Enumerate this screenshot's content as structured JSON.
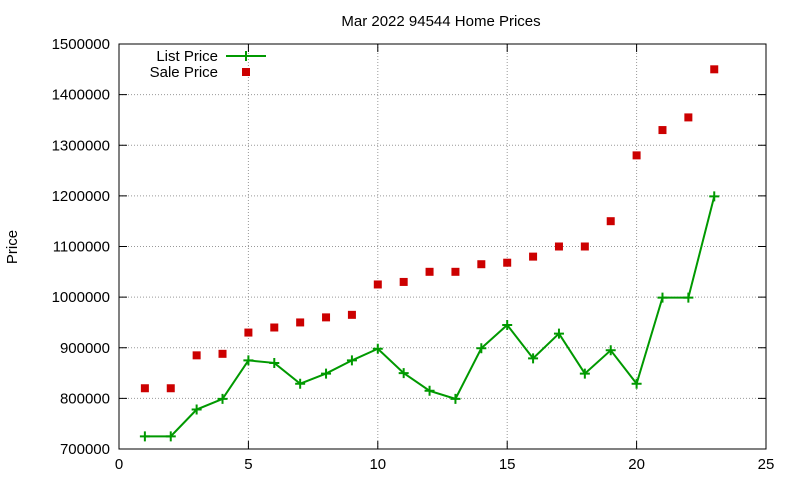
{
  "chart_data": {
    "type": "line",
    "title": "Mar 2022 94544 Home Prices",
    "xlabel": "",
    "ylabel": "Price",
    "xlim": [
      0,
      25
    ],
    "ylim": [
      700000,
      1500000
    ],
    "x_ticks": [
      0,
      5,
      10,
      15,
      20,
      25
    ],
    "y_ticks": [
      700000,
      800000,
      900000,
      1000000,
      1100000,
      1200000,
      1300000,
      1400000,
      1500000
    ],
    "grid": true,
    "legend_position": "top-left",
    "series": [
      {
        "name": "List Price",
        "style": "line-with-plus-markers",
        "color": "#009900",
        "x": [
          1,
          2,
          3,
          4,
          5,
          6,
          7,
          8,
          9,
          10,
          11,
          12,
          13,
          14,
          15,
          16,
          17,
          18,
          19,
          20,
          21,
          22,
          23
        ],
        "values": [
          725000,
          725000,
          778000,
          799000,
          875000,
          870000,
          829000,
          849000,
          875000,
          898000,
          850000,
          815000,
          799000,
          899000,
          945000,
          879000,
          928000,
          849000,
          895000,
          829000,
          999000,
          999000,
          1199000
        ]
      },
      {
        "name": "Sale Price",
        "style": "square-markers",
        "color": "#cc0000",
        "x": [
          1,
          2,
          3,
          4,
          5,
          6,
          7,
          8,
          9,
          10,
          11,
          12,
          13,
          14,
          15,
          16,
          17,
          18,
          19,
          20,
          21,
          22,
          23
        ],
        "values": [
          820000,
          820000,
          885000,
          888000,
          930000,
          940000,
          950000,
          960000,
          965000,
          1025000,
          1030000,
          1050000,
          1050000,
          1065000,
          1068000,
          1080000,
          1100000,
          1100000,
          1150000,
          1280000,
          1330000,
          1355000,
          1450000
        ]
      }
    ]
  }
}
